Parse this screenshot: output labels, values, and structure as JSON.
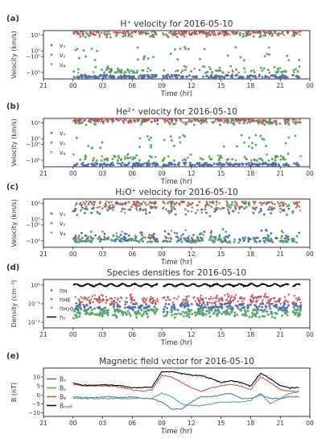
{
  "chart_data": [
    {
      "panel_letter": "(a)",
      "type": "scatter",
      "title": "H⁺ velocity for 2016-05-10",
      "ylabel": "Velocity (km/s)",
      "xlabel": "Time (hr)",
      "x_ticks": [
        "21",
        "00",
        "03",
        "06",
        "09",
        "12",
        "15",
        "18",
        "21",
        "00"
      ],
      "y_ticks": [
        "10²",
        "10⁰",
        "−10⁰",
        "−10²"
      ],
      "y_scale": "symlog",
      "legend_placement": "left",
      "legend": [
        "vₓ",
        "vᵧ",
        "vᵩ"
      ],
      "series": [
        {
          "name": "vₓ",
          "color": "#4c72b0",
          "marker": "circle",
          "regime": "flat at about −10² to −10³ km/s from 00 to 23 hr"
        },
        {
          "name": "vᵧ",
          "color": "#55a868",
          "marker": "square",
          "regime": "scattered between −10² and +10² km/s"
        },
        {
          "name": "vᵩ",
          "color": "#c44e52",
          "marker": "triangle",
          "regime": "near +10² km/s"
        }
      ]
    },
    {
      "panel_letter": "(b)",
      "type": "scatter",
      "title": "He²⁺ velocity for 2016-05-10",
      "ylabel": "Velocity (km/s)",
      "xlabel": "Time (hr)",
      "x_ticks": [
        "21",
        "00",
        "03",
        "06",
        "09",
        "12",
        "15",
        "18",
        "21",
        "00"
      ],
      "y_ticks": [
        "10²",
        "10⁰",
        "−10⁰",
        "−10²"
      ],
      "y_scale": "symlog",
      "legend_placement": "left",
      "legend": [
        "vₓ",
        "vᵧ",
        "vᵩ"
      ],
      "series": [
        {
          "name": "vₓ",
          "color": "#4c72b0",
          "marker": "circle",
          "regime": "flat near −10² km/s"
        },
        {
          "name": "vᵧ",
          "color": "#55a868",
          "marker": "square",
          "regime": "scattered between −10² and +10² km/s"
        },
        {
          "name": "vᵩ",
          "color": "#c44e52",
          "marker": "triangle",
          "regime": "near +10² km/s"
        }
      ]
    },
    {
      "panel_letter": "(c)",
      "type": "scatter",
      "title": "H₂O⁺ velocity for 2016-05-10",
      "ylabel": "Velocity (km/s)",
      "xlabel": "Time (hr)",
      "x_ticks": [
        "21",
        "00",
        "03",
        "06",
        "09",
        "12",
        "15",
        "18",
        "21",
        "00"
      ],
      "y_ticks": [
        "10²",
        "10⁰",
        "−10⁰",
        "−10²"
      ],
      "y_scale": "symlog",
      "legend_placement": "left",
      "legend": [
        "vₓ",
        "vᵧ",
        "vᵩ"
      ],
      "series": [
        {
          "name": "vₓ",
          "color": "#4c72b0",
          "marker": "circle",
          "regime": "scattered, mostly between −10¹ and −10² km/s"
        },
        {
          "name": "vᵧ",
          "color": "#55a868",
          "marker": "square",
          "regime": "scattered between −10² and +10² km/s"
        },
        {
          "name": "vᵩ",
          "color": "#c44e52",
          "marker": "triangle",
          "regime": "near +10¹ to +10² km/s"
        }
      ]
    },
    {
      "panel_letter": "(d)",
      "type": "scatter",
      "title": "Species densities for 2016-05-10",
      "ylabel": "Density (cm⁻³)",
      "xlabel": "Time (hr)",
      "x_ticks": [
        "21",
        "00",
        "03",
        "06",
        "09",
        "12",
        "15",
        "18",
        "21",
        "00"
      ],
      "y_ticks": [
        "10¹",
        "10⁻¹",
        "10⁻³"
      ],
      "y_scale": "log",
      "legend_placement": "left",
      "legend": [
        "nʜ",
        "nʜᴇ",
        "nʜ₂ᴏ",
        "nₑ"
      ],
      "series": [
        {
          "name": "nʜ",
          "color": "#4c72b0",
          "marker": "circle",
          "regime": "around 10⁻¹ to 10⁻² cm⁻³"
        },
        {
          "name": "nʜᴇ",
          "color": "#55a868",
          "marker": "square",
          "regime": "around 10⁻² cm⁻³"
        },
        {
          "name": "nʜ₂ᴏ",
          "color": "#c44e52",
          "marker": "triangle",
          "regime": "around 10⁻¹ cm⁻³"
        },
        {
          "name": "nₑ",
          "color": "#000000",
          "marker": "line",
          "regime": "about 10¹ cm⁻³ throughout"
        }
      ]
    },
    {
      "panel_letter": "(e)",
      "type": "line",
      "title": "Magnetic field vector for 2016-05-10",
      "ylabel": "B (nT)",
      "xlabel": "Time (hr)",
      "x_ticks": [
        "21",
        "00",
        "03",
        "06",
        "09",
        "12",
        "15",
        "18",
        "21",
        "00"
      ],
      "y_ticks": [
        "10",
        "5",
        "0",
        "−5",
        "−10"
      ],
      "ylim": [
        -12,
        15
      ],
      "legend_placement": "left",
      "legend": [
        "Bₓ",
        "Bᵧ",
        "Bᵩ",
        "Bₘₐ₉"
      ],
      "x": [
        0,
        1,
        2,
        3,
        4,
        5,
        6,
        7,
        8,
        9,
        10,
        11,
        12,
        13,
        14,
        15,
        16,
        17,
        18,
        19,
        20,
        21,
        22,
        23
      ],
      "series": [
        {
          "name": "Bₓ",
          "color": "#4c72b0",
          "values": [
            -1,
            -1.5,
            -1.5,
            -1,
            -1,
            -1.5,
            -1,
            -2,
            -2,
            -4,
            -8,
            -8,
            -4,
            -1,
            -1,
            0,
            1,
            -2,
            -2,
            0,
            -2,
            -2,
            -1,
            -1
          ]
        },
        {
          "name": "Bᵧ",
          "color": "#55a868",
          "values": [
            -2,
            -2,
            -2,
            -2,
            -2,
            -2,
            -2,
            -2,
            -2,
            1,
            -1,
            -5,
            -6,
            -6,
            -5,
            -4,
            -4,
            -4,
            -3,
            1,
            -5,
            -2,
            1,
            2
          ]
        },
        {
          "name": "Bᵩ",
          "color": "#c44e52",
          "values": [
            6,
            5,
            5,
            5,
            5,
            4,
            3,
            2,
            3,
            11,
            10,
            7,
            4,
            2,
            4,
            5,
            6,
            5,
            3,
            10,
            7,
            3,
            2,
            2
          ]
        },
        {
          "name": "Bₘₐ₉",
          "color": "#000000",
          "values": [
            6.5,
            5.5,
            5.5,
            5.5,
            5.5,
            5,
            4,
            4,
            4.5,
            13,
            13,
            12,
            11,
            11,
            9,
            7,
            8,
            7,
            5,
            12,
            9,
            5,
            4,
            4
          ]
        }
      ]
    }
  ]
}
